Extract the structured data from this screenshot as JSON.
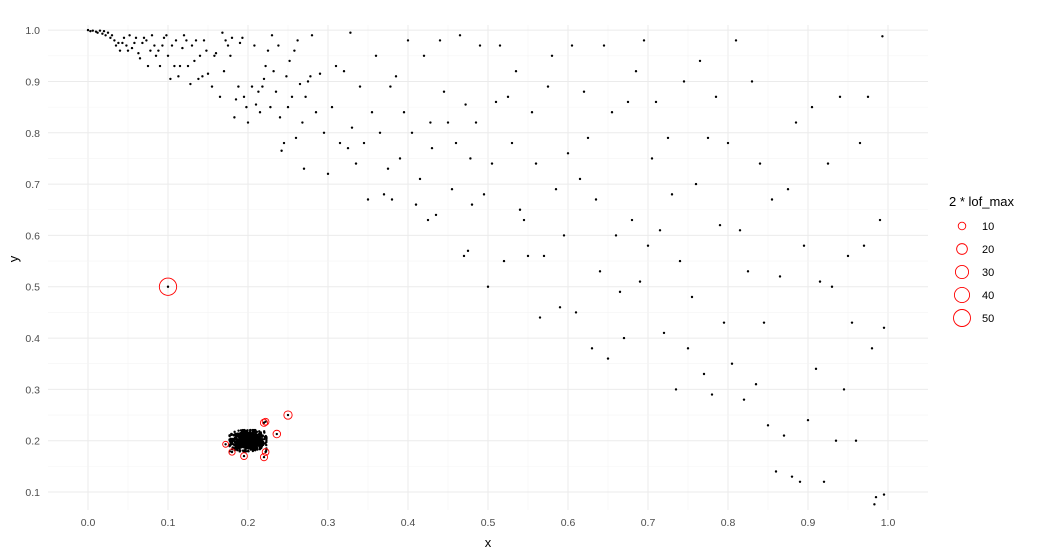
{
  "chart_data": {
    "type": "scatter",
    "xlabel": "x",
    "ylabel": "y",
    "xlim": [
      -0.05,
      1.05
    ],
    "ylim": [
      0.065,
      1.01
    ],
    "x_ticks": [
      0.0,
      0.1,
      0.2,
      0.3,
      0.4,
      0.5,
      0.6,
      0.7,
      0.8,
      0.9,
      1.0
    ],
    "x_tick_labels": [
      "0.0",
      "0.1",
      "0.2",
      "0.3",
      "0.4",
      "0.5",
      "0.6",
      "0.7",
      "0.8",
      "0.9",
      "1.0"
    ],
    "y_ticks": [
      0.1,
      0.2,
      0.3,
      0.4,
      0.5,
      0.6,
      0.7,
      0.8,
      0.9,
      1.0
    ],
    "y_tick_labels": [
      "0.1",
      "0.2",
      "0.3",
      "0.4",
      "0.5",
      "0.6",
      "0.7",
      "0.8",
      "0.9",
      "1.0"
    ],
    "grid": true,
    "point_color": "#000000",
    "circle_color": "#ff0000",
    "legend": {
      "title": "2 * lof_max",
      "placement": "right",
      "entries": [
        {
          "label": "10",
          "value": 10
        },
        {
          "label": "20",
          "value": 20
        },
        {
          "label": "30",
          "value": 30
        },
        {
          "label": "40",
          "value": 40
        },
        {
          "label": "50",
          "value": 50
        }
      ]
    },
    "outliers": [
      {
        "x": 0.1,
        "y": 0.5,
        "lof2": 52
      },
      {
        "x": 0.25,
        "y": 0.25,
        "lof2": 12
      },
      {
        "x": 0.236,
        "y": 0.213,
        "lof2": 10
      },
      {
        "x": 0.22,
        "y": 0.235,
        "lof2": 9
      },
      {
        "x": 0.222,
        "y": 0.237,
        "lof2": 8
      },
      {
        "x": 0.22,
        "y": 0.168,
        "lof2": 9
      },
      {
        "x": 0.222,
        "y": 0.178,
        "lof2": 8
      },
      {
        "x": 0.195,
        "y": 0.17,
        "lof2": 8
      },
      {
        "x": 0.18,
        "y": 0.178,
        "lof2": 7
      },
      {
        "x": 0.172,
        "y": 0.193,
        "lof2": 6
      }
    ],
    "points": [
      [
        0.0,
        1.0
      ],
      [
        0.003,
        0.998
      ],
      [
        0.006,
        0.999
      ],
      [
        0.01,
        0.997
      ],
      [
        0.012,
        0.995
      ],
      [
        0.015,
        0.999
      ],
      [
        0.018,
        0.993
      ],
      [
        0.02,
        0.998
      ],
      [
        0.022,
        0.99
      ],
      [
        0.025,
        0.995
      ],
      [
        0.028,
        0.985
      ],
      [
        0.03,
        0.99
      ],
      [
        0.033,
        0.98
      ],
      [
        0.035,
        0.97
      ],
      [
        0.038,
        0.975
      ],
      [
        0.04,
        0.96
      ],
      [
        0.043,
        0.975
      ],
      [
        0.045,
        0.985
      ],
      [
        0.048,
        0.97
      ],
      [
        0.05,
        0.96
      ],
      [
        0.052,
        0.99
      ],
      [
        0.055,
        0.965
      ],
      [
        0.058,
        0.975
      ],
      [
        0.06,
        0.985
      ],
      [
        0.063,
        0.955
      ],
      [
        0.065,
        0.945
      ],
      [
        0.068,
        0.975
      ],
      [
        0.07,
        0.985
      ],
      [
        0.073,
        0.98
      ],
      [
        0.075,
        0.93
      ],
      [
        0.078,
        0.96
      ],
      [
        0.08,
        0.99
      ],
      [
        0.083,
        0.97
      ],
      [
        0.085,
        0.95
      ],
      [
        0.088,
        0.96
      ],
      [
        0.09,
        0.93
      ],
      [
        0.093,
        0.97
      ],
      [
        0.095,
        0.985
      ],
      [
        0.098,
        0.99
      ],
      [
        0.1,
        0.95
      ],
      [
        0.103,
        0.905
      ],
      [
        0.105,
        0.97
      ],
      [
        0.108,
        0.93
      ],
      [
        0.11,
        0.98
      ],
      [
        0.113,
        0.91
      ],
      [
        0.115,
        0.93
      ],
      [
        0.118,
        0.965
      ],
      [
        0.12,
        0.99
      ],
      [
        0.123,
        0.98
      ],
      [
        0.125,
        0.93
      ],
      [
        0.128,
        0.895
      ],
      [
        0.13,
        0.97
      ],
      [
        0.133,
        0.94
      ],
      [
        0.135,
        0.98
      ],
      [
        0.138,
        0.905
      ],
      [
        0.14,
        0.95
      ],
      [
        0.143,
        0.91
      ],
      [
        0.145,
        0.98
      ],
      [
        0.148,
        0.96
      ],
      [
        0.15,
        0.915
      ],
      [
        0.155,
        0.89
      ],
      [
        0.158,
        0.95
      ],
      [
        0.16,
        0.955
      ],
      [
        0.165,
        0.87
      ],
      [
        0.168,
        0.995
      ],
      [
        0.17,
        0.92
      ],
      [
        0.172,
        0.98
      ],
      [
        0.175,
        0.97
      ],
      [
        0.178,
        0.95
      ],
      [
        0.18,
        0.985
      ],
      [
        0.183,
        0.83
      ],
      [
        0.185,
        0.865
      ],
      [
        0.188,
        0.89
      ],
      [
        0.19,
        0.975
      ],
      [
        0.193,
        0.985
      ],
      [
        0.195,
        0.87
      ],
      [
        0.198,
        0.85
      ],
      [
        0.2,
        0.82
      ],
      [
        0.205,
        0.89
      ],
      [
        0.208,
        0.97
      ],
      [
        0.21,
        0.855
      ],
      [
        0.213,
        0.88
      ],
      [
        0.215,
        0.84
      ],
      [
        0.218,
        0.89
      ],
      [
        0.22,
        0.905
      ],
      [
        0.222,
        0.93
      ],
      [
        0.225,
        0.96
      ],
      [
        0.228,
        0.85
      ],
      [
        0.23,
        0.99
      ],
      [
        0.232,
        0.92
      ],
      [
        0.235,
        0.88
      ],
      [
        0.238,
        0.97
      ],
      [
        0.24,
        0.83
      ],
      [
        0.242,
        0.765
      ],
      [
        0.245,
        0.78
      ],
      [
        0.248,
        0.91
      ],
      [
        0.25,
        0.85
      ],
      [
        0.252,
        0.94
      ],
      [
        0.255,
        0.87
      ],
      [
        0.258,
        0.96
      ],
      [
        0.26,
        0.79
      ],
      [
        0.262,
        0.98
      ],
      [
        0.265,
        0.895
      ],
      [
        0.268,
        0.82
      ],
      [
        0.27,
        0.73
      ],
      [
        0.272,
        0.87
      ],
      [
        0.275,
        0.9
      ],
      [
        0.278,
        0.91
      ],
      [
        0.28,
        0.99
      ],
      [
        0.285,
        0.84
      ],
      [
        0.29,
        0.915
      ],
      [
        0.295,
        0.8
      ],
      [
        0.3,
        0.72
      ],
      [
        0.305,
        0.85
      ],
      [
        0.31,
        0.93
      ],
      [
        0.315,
        0.78
      ],
      [
        0.32,
        0.92
      ],
      [
        0.325,
        0.77
      ],
      [
        0.328,
        0.995
      ],
      [
        0.33,
        0.81
      ],
      [
        0.335,
        0.74
      ],
      [
        0.34,
        0.89
      ],
      [
        0.345,
        0.78
      ],
      [
        0.35,
        0.67
      ],
      [
        0.355,
        0.84
      ],
      [
        0.36,
        0.95
      ],
      [
        0.365,
        0.8
      ],
      [
        0.37,
        0.68
      ],
      [
        0.375,
        0.73
      ],
      [
        0.378,
        0.89
      ],
      [
        0.38,
        0.67
      ],
      [
        0.385,
        0.91
      ],
      [
        0.39,
        0.75
      ],
      [
        0.395,
        0.84
      ],
      [
        0.4,
        0.98
      ],
      [
        0.405,
        0.8
      ],
      [
        0.41,
        0.66
      ],
      [
        0.415,
        0.71
      ],
      [
        0.42,
        0.95
      ],
      [
        0.425,
        0.63
      ],
      [
        0.428,
        0.82
      ],
      [
        0.43,
        0.77
      ],
      [
        0.435,
        0.64
      ],
      [
        0.44,
        0.98
      ],
      [
        0.445,
        0.88
      ],
      [
        0.45,
        0.82
      ],
      [
        0.455,
        0.69
      ],
      [
        0.46,
        0.78
      ],
      [
        0.465,
        0.99
      ],
      [
        0.47,
        0.56
      ],
      [
        0.472,
        0.855
      ],
      [
        0.475,
        0.57
      ],
      [
        0.478,
        0.75
      ],
      [
        0.48,
        0.66
      ],
      [
        0.485,
        0.82
      ],
      [
        0.49,
        0.97
      ],
      [
        0.495,
        0.68
      ],
      [
        0.5,
        0.5
      ],
      [
        0.505,
        0.74
      ],
      [
        0.51,
        0.86
      ],
      [
        0.515,
        0.97
      ],
      [
        0.52,
        0.55
      ],
      [
        0.525,
        0.87
      ],
      [
        0.53,
        0.78
      ],
      [
        0.535,
        0.92
      ],
      [
        0.54,
        0.65
      ],
      [
        0.545,
        0.63
      ],
      [
        0.55,
        0.56
      ],
      [
        0.555,
        0.84
      ],
      [
        0.56,
        0.74
      ],
      [
        0.565,
        0.44
      ],
      [
        0.57,
        0.56
      ],
      [
        0.575,
        0.89
      ],
      [
        0.58,
        0.95
      ],
      [
        0.585,
        0.69
      ],
      [
        0.59,
        0.46
      ],
      [
        0.595,
        0.6
      ],
      [
        0.6,
        0.76
      ],
      [
        0.605,
        0.97
      ],
      [
        0.61,
        0.45
      ],
      [
        0.615,
        0.71
      ],
      [
        0.62,
        0.88
      ],
      [
        0.625,
        0.79
      ],
      [
        0.63,
        0.38
      ],
      [
        0.635,
        0.67
      ],
      [
        0.64,
        0.53
      ],
      [
        0.645,
        0.97
      ],
      [
        0.65,
        0.36
      ],
      [
        0.655,
        0.84
      ],
      [
        0.66,
        0.6
      ],
      [
        0.665,
        0.49
      ],
      [
        0.67,
        0.4
      ],
      [
        0.675,
        0.86
      ],
      [
        0.68,
        0.63
      ],
      [
        0.685,
        0.92
      ],
      [
        0.69,
        0.51
      ],
      [
        0.695,
        0.98
      ],
      [
        0.7,
        0.58
      ],
      [
        0.705,
        0.75
      ],
      [
        0.71,
        0.86
      ],
      [
        0.715,
        0.61
      ],
      [
        0.72,
        0.41
      ],
      [
        0.725,
        0.79
      ],
      [
        0.73,
        0.68
      ],
      [
        0.735,
        0.3
      ],
      [
        0.74,
        0.55
      ],
      [
        0.745,
        0.9
      ],
      [
        0.75,
        0.38
      ],
      [
        0.755,
        0.48
      ],
      [
        0.76,
        0.7
      ],
      [
        0.765,
        0.94
      ],
      [
        0.77,
        0.33
      ],
      [
        0.775,
        0.79
      ],
      [
        0.78,
        0.29
      ],
      [
        0.785,
        0.87
      ],
      [
        0.79,
        0.62
      ],
      [
        0.795,
        0.43
      ],
      [
        0.8,
        0.78
      ],
      [
        0.805,
        0.35
      ],
      [
        0.81,
        0.98
      ],
      [
        0.815,
        0.61
      ],
      [
        0.82,
        0.28
      ],
      [
        0.825,
        0.53
      ],
      [
        0.83,
        0.9
      ],
      [
        0.835,
        0.31
      ],
      [
        0.84,
        0.74
      ],
      [
        0.845,
        0.43
      ],
      [
        0.85,
        0.23
      ],
      [
        0.855,
        0.67
      ],
      [
        0.86,
        0.14
      ],
      [
        0.865,
        0.52
      ],
      [
        0.87,
        0.21
      ],
      [
        0.875,
        0.69
      ],
      [
        0.88,
        0.13
      ],
      [
        0.885,
        0.82
      ],
      [
        0.89,
        0.12
      ],
      [
        0.895,
        0.58
      ],
      [
        0.9,
        0.24
      ],
      [
        0.905,
        0.85
      ],
      [
        0.91,
        0.34
      ],
      [
        0.915,
        0.51
      ],
      [
        0.92,
        0.12
      ],
      [
        0.925,
        0.74
      ],
      [
        0.93,
        0.5
      ],
      [
        0.935,
        0.2
      ],
      [
        0.94,
        0.87
      ],
      [
        0.945,
        0.3
      ],
      [
        0.95,
        0.56
      ],
      [
        0.955,
        0.43
      ],
      [
        0.96,
        0.2
      ],
      [
        0.965,
        0.78
      ],
      [
        0.97,
        0.58
      ],
      [
        0.975,
        0.87
      ],
      [
        0.98,
        0.38
      ],
      [
        0.985,
        0.09
      ],
      [
        0.99,
        0.63
      ],
      [
        0.995,
        0.42
      ],
      [
        0.993,
        0.988
      ],
      [
        0.983,
        0.076
      ],
      [
        0.995,
        0.095
      ]
    ],
    "cluster": {
      "center_x": 0.2,
      "center_y": 0.2,
      "sd_x": 0.01,
      "sd_y": 0.009,
      "count": 900
    }
  }
}
